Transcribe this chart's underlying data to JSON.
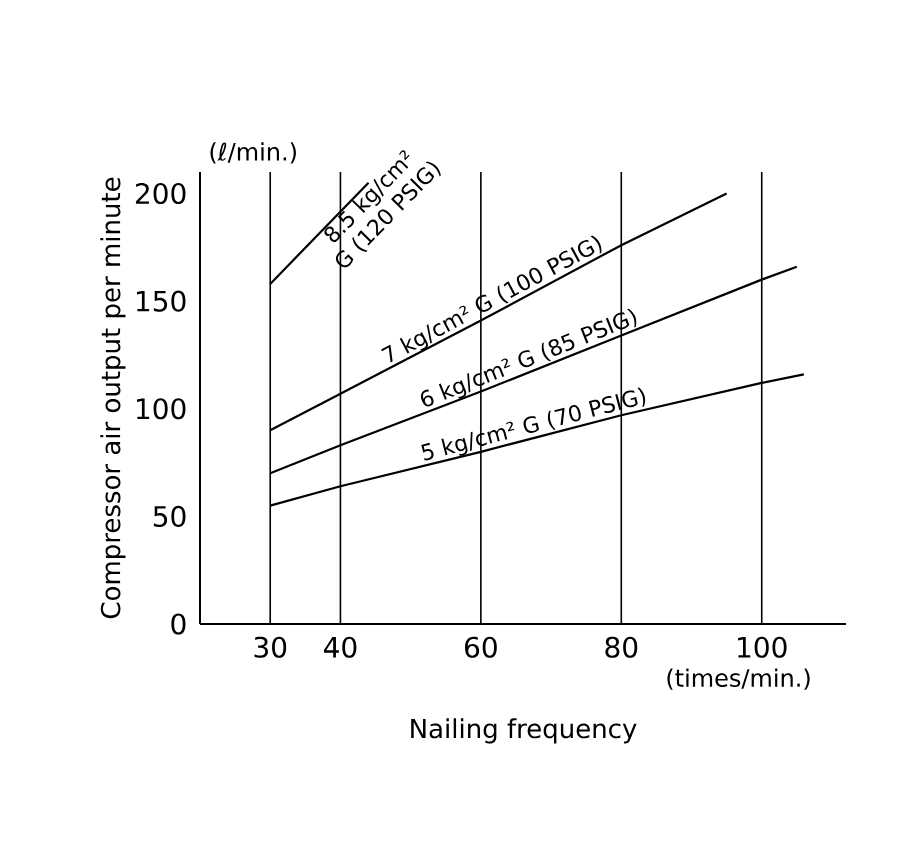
{
  "chart_data": {
    "type": "line",
    "xlabel": "Nailing frequency",
    "ylabel": "Compressor air output per minute",
    "annotations": [
      "(ℓ/min.)",
      "(times/min.)"
    ],
    "xlim": [
      20,
      112
    ],
    "ylim": [
      0,
      210
    ],
    "xticks": [
      30,
      40,
      60,
      80,
      100
    ],
    "yticks": [
      0,
      50,
      100,
      150,
      200
    ],
    "grid": "x",
    "marker": "none",
    "line_style": "solid",
    "series": [
      {
        "name": "8.5 kg/cm² G (120 PSIG)",
        "color": "#000000",
        "x": [
          30,
          44
        ],
        "values": [
          158,
          205
        ]
      },
      {
        "name": "7 kg/cm² G (100 PSIG)",
        "color": "#000000",
        "x": [
          30,
          40,
          60,
          80,
          95
        ],
        "values": [
          90,
          107,
          141,
          176,
          200
        ]
      },
      {
        "name": "6 kg/cm² G (85 PSIG)",
        "color": "#000000",
        "x": [
          30,
          40,
          60,
          80,
          100,
          105
        ],
        "values": [
          70,
          83,
          108,
          134,
          160,
          166
        ]
      },
      {
        "name": "5 kg/cm² G (70 PSIG)",
        "color": "#000000",
        "x": [
          30,
          40,
          60,
          80,
          100,
          106
        ],
        "values": [
          55,
          64,
          80,
          97,
          112,
          116
        ]
      }
    ]
  }
}
